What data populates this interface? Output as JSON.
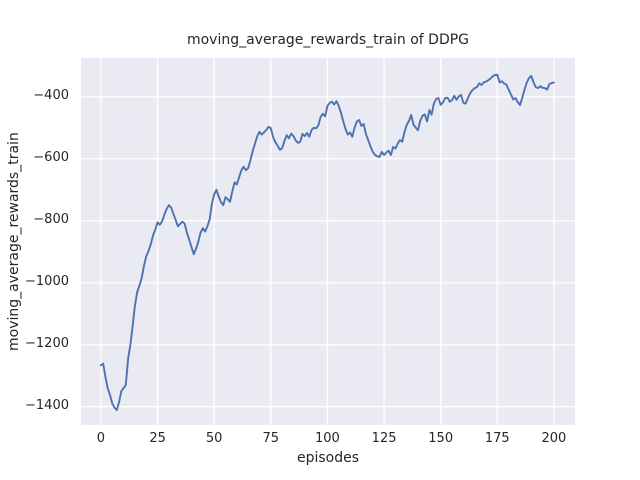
{
  "chart_data": {
    "type": "line",
    "title": "moving_average_rewards_train of DDPG",
    "xlabel": "episodes",
    "ylabel": "moving_average_rewards_train",
    "grid": true,
    "legend": false,
    "xlim": [
      -8.8,
      209.3
    ],
    "ylim": [
      -1459,
      -275
    ],
    "x_ticks": [
      0,
      25,
      50,
      75,
      100,
      125,
      150,
      175,
      200
    ],
    "x_tick_labels": [
      "0",
      "25",
      "50",
      "75",
      "100",
      "125",
      "150",
      "175",
      "200"
    ],
    "y_ticks": [
      -400,
      -600,
      -800,
      -1000,
      -1200,
      -1400
    ],
    "y_tick_labels": [
      "−400",
      "−600",
      "−800",
      "−1000",
      "−1200",
      "−1400"
    ],
    "colors": {
      "figure_bg": "#ffffff",
      "plot_bg": "#eaeaf2",
      "grid": "#ffffff",
      "line": "#4c72b0",
      "text": "#262626"
    },
    "x": [
      0,
      1,
      2,
      3,
      4,
      5,
      6,
      7,
      8,
      9,
      10,
      11,
      12,
      13,
      14,
      15,
      16,
      17,
      18,
      19,
      20,
      21,
      22,
      23,
      24,
      25,
      26,
      27,
      28,
      29,
      30,
      31,
      32,
      33,
      34,
      35,
      36,
      37,
      38,
      39,
      40,
      41,
      42,
      43,
      44,
      45,
      46,
      47,
      48,
      49,
      50,
      51,
      52,
      53,
      54,
      55,
      56,
      57,
      58,
      59,
      60,
      61,
      62,
      63,
      64,
      65,
      66,
      67,
      68,
      69,
      70,
      71,
      72,
      73,
      74,
      75,
      76,
      77,
      78,
      79,
      80,
      81,
      82,
      83,
      84,
      85,
      86,
      87,
      88,
      89,
      90,
      91,
      92,
      93,
      94,
      95,
      96,
      97,
      98,
      99,
      100,
      101,
      102,
      103,
      104,
      105,
      106,
      107,
      108,
      109,
      110,
      111,
      112,
      113,
      114,
      115,
      116,
      117,
      118,
      119,
      120,
      121,
      122,
      123,
      124,
      125,
      126,
      127,
      128,
      129,
      130,
      131,
      132,
      133,
      134,
      135,
      136,
      137,
      138,
      139,
      140,
      141,
      142,
      143,
      144,
      145,
      146,
      147,
      148,
      149,
      150,
      151,
      152,
      153,
      154,
      155,
      156,
      157,
      158,
      159,
      160,
      161,
      162,
      163,
      164,
      165,
      166,
      167,
      168,
      169,
      170,
      171,
      172,
      173,
      174,
      175,
      176,
      177,
      178,
      179,
      180,
      181,
      182,
      183,
      184,
      185,
      186,
      187,
      188,
      189,
      190,
      191,
      192,
      193,
      194,
      195,
      196,
      197,
      198,
      199,
      200
    ],
    "series": [
      {
        "name": "moving_average_rewards_train",
        "color": "#4c72b0",
        "values": [
          -1266,
          -1261,
          -1305,
          -1340,
          -1362,
          -1390,
          -1403,
          -1411,
          -1385,
          -1350,
          -1340,
          -1330,
          -1245,
          -1200,
          -1140,
          -1075,
          -1030,
          -1010,
          -985,
          -945,
          -915,
          -898,
          -875,
          -848,
          -828,
          -805,
          -813,
          -802,
          -780,
          -762,
          -750,
          -757,
          -778,
          -798,
          -818,
          -810,
          -803,
          -810,
          -840,
          -862,
          -885,
          -908,
          -890,
          -868,
          -838,
          -824,
          -835,
          -818,
          -795,
          -745,
          -715,
          -700,
          -722,
          -740,
          -750,
          -724,
          -731,
          -739,
          -705,
          -676,
          -683,
          -660,
          -637,
          -626,
          -637,
          -630,
          -605,
          -575,
          -551,
          -528,
          -513,
          -522,
          -515,
          -507,
          -497,
          -501,
          -530,
          -546,
          -558,
          -571,
          -566,
          -543,
          -524,
          -534,
          -519,
          -527,
          -541,
          -549,
          -545,
          -520,
          -527,
          -517,
          -529,
          -507,
          -500,
          -502,
          -492,
          -465,
          -455,
          -463,
          -430,
          -420,
          -416,
          -425,
          -414,
          -430,
          -452,
          -480,
          -505,
          -522,
          -515,
          -529,
          -500,
          -480,
          -475,
          -494,
          -488,
          -520,
          -540,
          -560,
          -577,
          -588,
          -592,
          -594,
          -578,
          -588,
          -580,
          -574,
          -588,
          -562,
          -567,
          -552,
          -540,
          -545,
          -515,
          -491,
          -478,
          -459,
          -490,
          -500,
          -508,
          -477,
          -461,
          -457,
          -480,
          -443,
          -458,
          -422,
          -407,
          -404,
          -426,
          -419,
          -404,
          -403,
          -416,
          -411,
          -397,
          -410,
          -399,
          -394,
          -419,
          -422,
          -404,
          -389,
          -379,
          -372,
          -369,
          -357,
          -362,
          -354,
          -351,
          -347,
          -341,
          -334,
          -330,
          -329,
          -354,
          -350,
          -357,
          -361,
          -377,
          -392,
          -409,
          -404,
          -417,
          -427,
          -404,
          -377,
          -354,
          -340,
          -333,
          -354,
          -369,
          -372,
          -366,
          -371,
          -372,
          -377,
          -359,
          -356,
          -354
        ]
      }
    ]
  }
}
